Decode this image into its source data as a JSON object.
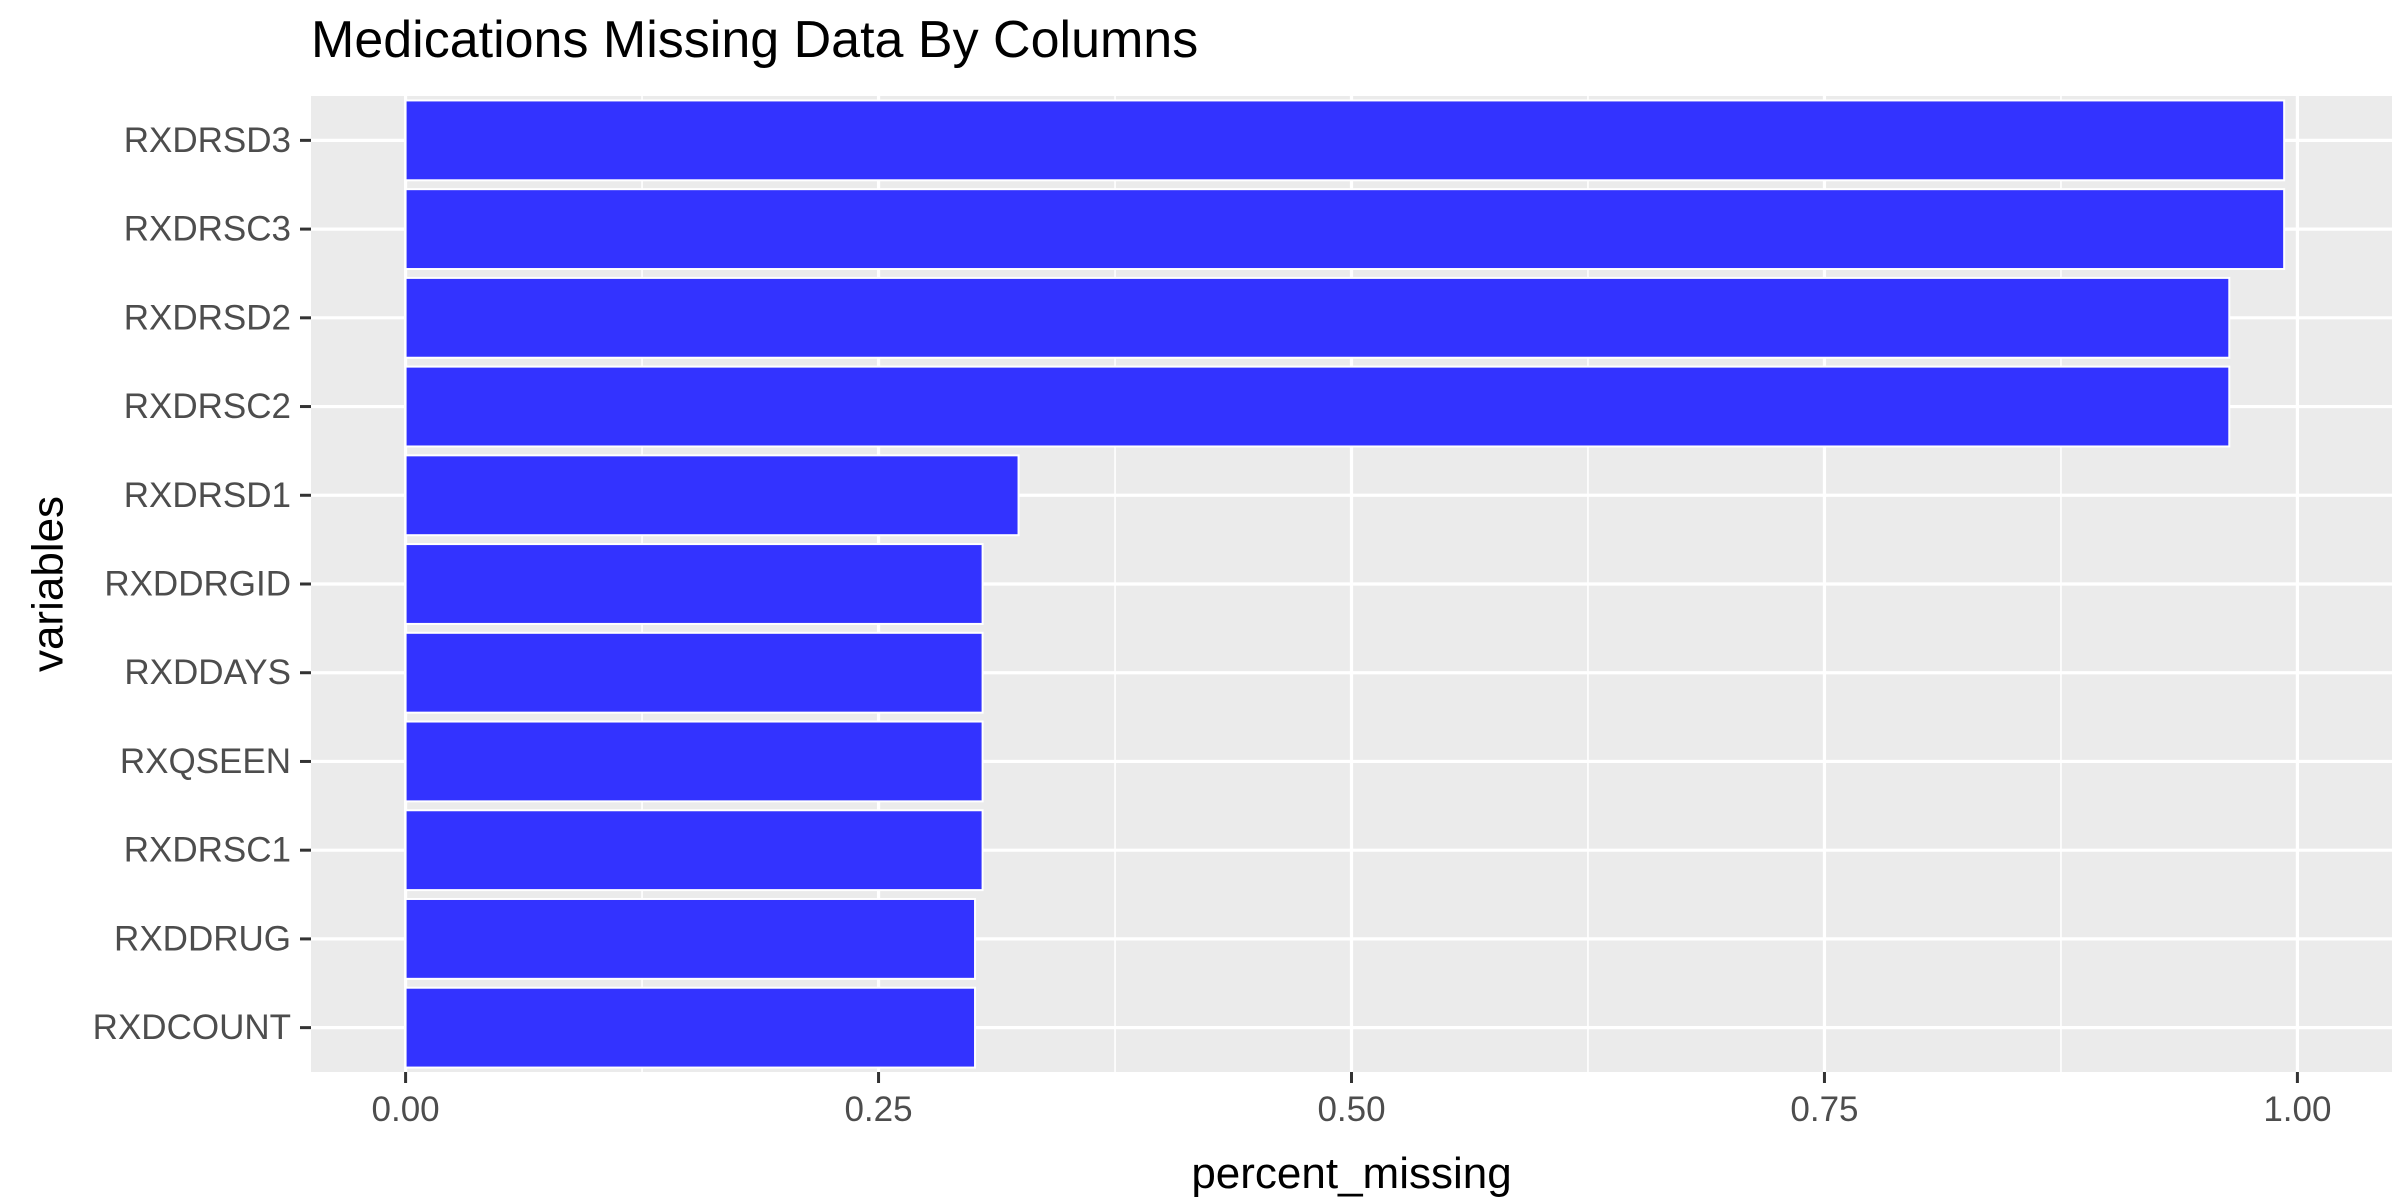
{
  "chart_data": {
    "type": "bar",
    "orientation": "horizontal",
    "title": "Medications Missing Data By Columns",
    "xlabel": "percent_missing",
    "ylabel": "variables",
    "xlim": [
      -0.05,
      1.05
    ],
    "x_ticks": [
      0.0,
      0.25,
      0.5,
      0.75,
      1.0
    ],
    "x_tick_labels": [
      "0.00",
      "0.25",
      "0.50",
      "0.75",
      "1.00"
    ],
    "categories": [
      "RXDRSD3",
      "RXDRSC3",
      "RXDRSD2",
      "RXDRSC2",
      "RXDRSD1",
      "RXDDRGID",
      "RXDDAYS",
      "RXQSEEN",
      "RXDRSC1",
      "RXDDRUG",
      "RXDCOUNT"
    ],
    "values": [
      0.993,
      0.993,
      0.964,
      0.964,
      0.324,
      0.305,
      0.305,
      0.305,
      0.305,
      0.301,
      0.301
    ],
    "bar_color": "#3333ff",
    "panel_background": "#ebebeb",
    "grid_color": "#ffffff",
    "grid": true,
    "legend": "none"
  }
}
